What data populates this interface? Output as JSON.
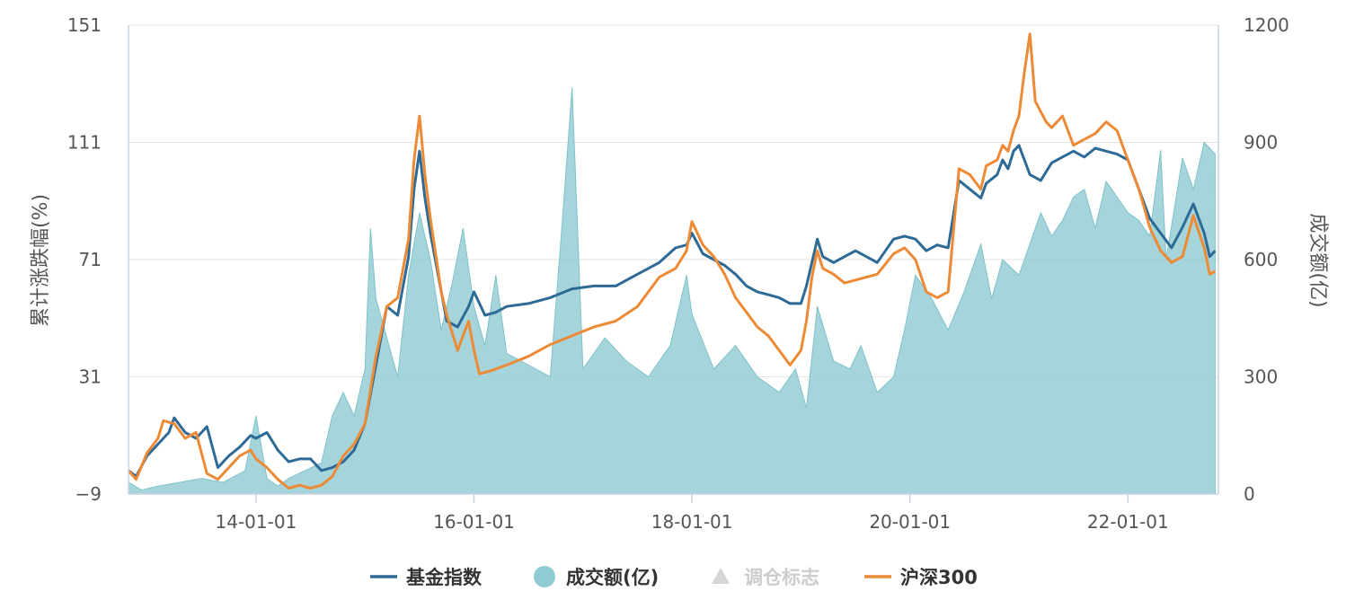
{
  "chart_data": {
    "type": "line",
    "x_ticks": [
      "14-01-01",
      "16-01-01",
      "18-01-01",
      "20-01-01",
      "22-01-01"
    ],
    "y_left": {
      "label": "累计涨跌幅(%)",
      "ticks": [
        -9,
        31,
        71,
        111,
        151
      ],
      "range": [
        -9,
        151
      ]
    },
    "y_right": {
      "label": "成交额(亿)",
      "ticks": [
        0,
        300,
        600,
        900,
        1200
      ],
      "range": [
        0,
        1200
      ]
    },
    "grid": true,
    "legend_position": "bottom",
    "colors": {
      "fund_index": "#2e6a96",
      "turnover": "#8fcbd2",
      "rebalance": "#d6d6d6",
      "csi300": "#ec8a35",
      "grid": "#e3e3e3",
      "axis": "#c9d3dd"
    },
    "legend": [
      {
        "name": "基金指数",
        "marker": "line",
        "color": "#2e6a96",
        "enabled": true
      },
      {
        "name": "成交额(亿)",
        "marker": "circle",
        "color": "#8fcbd2",
        "enabled": true
      },
      {
        "name": "调仓标志",
        "marker": "triangle",
        "color": "#cccccc",
        "enabled": false
      },
      {
        "name": "沪深300",
        "marker": "line",
        "color": "#ec8a35",
        "enabled": true
      }
    ],
    "series": [
      {
        "name": "基金指数",
        "axis": "left",
        "points": [
          [
            2012.83,
            -1
          ],
          [
            2012.9,
            -3
          ],
          [
            2013.0,
            4
          ],
          [
            2013.1,
            8
          ],
          [
            2013.2,
            12
          ],
          [
            2013.25,
            17
          ],
          [
            2013.35,
            12
          ],
          [
            2013.45,
            10
          ],
          [
            2013.55,
            14
          ],
          [
            2013.65,
            0
          ],
          [
            2013.75,
            4
          ],
          [
            2013.85,
            7
          ],
          [
            2013.95,
            11
          ],
          [
            2014.0,
            10
          ],
          [
            2014.1,
            12
          ],
          [
            2014.2,
            6
          ],
          [
            2014.3,
            2
          ],
          [
            2014.4,
            3
          ],
          [
            2014.5,
            3
          ],
          [
            2014.6,
            -1
          ],
          [
            2014.7,
            0
          ],
          [
            2014.8,
            2
          ],
          [
            2014.9,
            6
          ],
          [
            2015.0,
            15
          ],
          [
            2015.1,
            35
          ],
          [
            2015.2,
            55
          ],
          [
            2015.3,
            52
          ],
          [
            2015.4,
            72
          ],
          [
            2015.45,
            95
          ],
          [
            2015.5,
            108
          ],
          [
            2015.55,
            92
          ],
          [
            2015.6,
            80
          ],
          [
            2015.7,
            60
          ],
          [
            2015.75,
            50
          ],
          [
            2015.85,
            48
          ],
          [
            2015.95,
            55
          ],
          [
            2016.0,
            60
          ],
          [
            2016.05,
            56
          ],
          [
            2016.1,
            52
          ],
          [
            2016.2,
            53
          ],
          [
            2016.3,
            55
          ],
          [
            2016.5,
            56
          ],
          [
            2016.7,
            58
          ],
          [
            2016.9,
            61
          ],
          [
            2017.1,
            62
          ],
          [
            2017.3,
            62
          ],
          [
            2017.5,
            66
          ],
          [
            2017.7,
            70
          ],
          [
            2017.85,
            75
          ],
          [
            2017.95,
            76
          ],
          [
            2018.0,
            80
          ],
          [
            2018.1,
            73
          ],
          [
            2018.2,
            71
          ],
          [
            2018.3,
            69
          ],
          [
            2018.4,
            66
          ],
          [
            2018.5,
            62
          ],
          [
            2018.6,
            60
          ],
          [
            2018.7,
            59
          ],
          [
            2018.8,
            58
          ],
          [
            2018.9,
            56
          ],
          [
            2019.0,
            56
          ],
          [
            2019.05,
            62
          ],
          [
            2019.1,
            70
          ],
          [
            2019.15,
            78
          ],
          [
            2019.2,
            72
          ],
          [
            2019.3,
            70
          ],
          [
            2019.4,
            72
          ],
          [
            2019.5,
            74
          ],
          [
            2019.6,
            72
          ],
          [
            2019.7,
            70
          ],
          [
            2019.85,
            78
          ],
          [
            2019.95,
            79
          ],
          [
            2020.05,
            78
          ],
          [
            2020.15,
            74
          ],
          [
            2020.25,
            76
          ],
          [
            2020.35,
            75
          ],
          [
            2020.45,
            98
          ],
          [
            2020.55,
            95
          ],
          [
            2020.65,
            92
          ],
          [
            2020.7,
            97
          ],
          [
            2020.8,
            100
          ],
          [
            2020.85,
            105
          ],
          [
            2020.9,
            102
          ],
          [
            2020.95,
            108
          ],
          [
            2021.0,
            110
          ],
          [
            2021.05,
            105
          ],
          [
            2021.1,
            100
          ],
          [
            2021.2,
            98
          ],
          [
            2021.3,
            104
          ],
          [
            2021.4,
            106
          ],
          [
            2021.5,
            108
          ],
          [
            2021.6,
            106
          ],
          [
            2021.7,
            109
          ],
          [
            2021.8,
            108
          ],
          [
            2021.9,
            107
          ],
          [
            2022.0,
            105
          ],
          [
            2022.1,
            95
          ],
          [
            2022.2,
            85
          ],
          [
            2022.3,
            80
          ],
          [
            2022.4,
            75
          ],
          [
            2022.5,
            82
          ],
          [
            2022.6,
            90
          ],
          [
            2022.7,
            80
          ],
          [
            2022.75,
            72
          ],
          [
            2022.8,
            74
          ]
        ]
      },
      {
        "name": "沪深300",
        "axis": "left",
        "points": [
          [
            2012.83,
            -1
          ],
          [
            2012.9,
            -4
          ],
          [
            2013.0,
            5
          ],
          [
            2013.1,
            10
          ],
          [
            2013.15,
            16
          ],
          [
            2013.25,
            15
          ],
          [
            2013.35,
            10
          ],
          [
            2013.45,
            12
          ],
          [
            2013.55,
            -2
          ],
          [
            2013.65,
            -4
          ],
          [
            2013.75,
            0
          ],
          [
            2013.85,
            4
          ],
          [
            2013.95,
            6
          ],
          [
            2014.0,
            3
          ],
          [
            2014.1,
            0
          ],
          [
            2014.2,
            -4
          ],
          [
            2014.3,
            -7
          ],
          [
            2014.4,
            -6
          ],
          [
            2014.5,
            -7
          ],
          [
            2014.6,
            -6
          ],
          [
            2014.7,
            -3
          ],
          [
            2014.8,
            4
          ],
          [
            2014.9,
            8
          ],
          [
            2015.0,
            15
          ],
          [
            2015.1,
            38
          ],
          [
            2015.2,
            55
          ],
          [
            2015.3,
            58
          ],
          [
            2015.4,
            78
          ],
          [
            2015.45,
            105
          ],
          [
            2015.5,
            120
          ],
          [
            2015.55,
            100
          ],
          [
            2015.6,
            85
          ],
          [
            2015.7,
            60
          ],
          [
            2015.75,
            52
          ],
          [
            2015.85,
            40
          ],
          [
            2015.95,
            50
          ],
          [
            2016.0,
            40
          ],
          [
            2016.05,
            32
          ],
          [
            2016.15,
            33
          ],
          [
            2016.3,
            35
          ],
          [
            2016.5,
            38
          ],
          [
            2016.7,
            42
          ],
          [
            2016.9,
            45
          ],
          [
            2017.1,
            48
          ],
          [
            2017.3,
            50
          ],
          [
            2017.5,
            55
          ],
          [
            2017.7,
            65
          ],
          [
            2017.85,
            68
          ],
          [
            2017.95,
            74
          ],
          [
            2018.0,
            84
          ],
          [
            2018.1,
            76
          ],
          [
            2018.2,
            72
          ],
          [
            2018.3,
            66
          ],
          [
            2018.4,
            58
          ],
          [
            2018.5,
            53
          ],
          [
            2018.6,
            48
          ],
          [
            2018.7,
            45
          ],
          [
            2018.8,
            40
          ],
          [
            2018.9,
            35
          ],
          [
            2019.0,
            40
          ],
          [
            2019.05,
            50
          ],
          [
            2019.1,
            65
          ],
          [
            2019.15,
            74
          ],
          [
            2019.2,
            68
          ],
          [
            2019.3,
            66
          ],
          [
            2019.4,
            63
          ],
          [
            2019.5,
            64
          ],
          [
            2019.6,
            65
          ],
          [
            2019.7,
            66
          ],
          [
            2019.85,
            73
          ],
          [
            2019.95,
            75
          ],
          [
            2020.05,
            71
          ],
          [
            2020.15,
            60
          ],
          [
            2020.25,
            58
          ],
          [
            2020.35,
            60
          ],
          [
            2020.45,
            102
          ],
          [
            2020.55,
            100
          ],
          [
            2020.65,
            95
          ],
          [
            2020.7,
            103
          ],
          [
            2020.8,
            105
          ],
          [
            2020.85,
            110
          ],
          [
            2020.9,
            108
          ],
          [
            2020.95,
            115
          ],
          [
            2021.0,
            120
          ],
          [
            2021.05,
            135
          ],
          [
            2021.1,
            148
          ],
          [
            2021.15,
            125
          ],
          [
            2021.25,
            118
          ],
          [
            2021.3,
            116
          ],
          [
            2021.4,
            120
          ],
          [
            2021.5,
            110
          ],
          [
            2021.6,
            112
          ],
          [
            2021.7,
            114
          ],
          [
            2021.8,
            118
          ],
          [
            2021.9,
            115
          ],
          [
            2022.0,
            105
          ],
          [
            2022.1,
            95
          ],
          [
            2022.2,
            82
          ],
          [
            2022.3,
            74
          ],
          [
            2022.4,
            70
          ],
          [
            2022.5,
            72
          ],
          [
            2022.6,
            86
          ],
          [
            2022.7,
            75
          ],
          [
            2022.75,
            66
          ],
          [
            2022.8,
            67
          ]
        ]
      },
      {
        "name": "成交额(亿)",
        "axis": "right",
        "type": "area",
        "points": [
          [
            2012.83,
            30
          ],
          [
            2012.95,
            10
          ],
          [
            2013.1,
            20
          ],
          [
            2013.3,
            30
          ],
          [
            2013.5,
            40
          ],
          [
            2013.7,
            30
          ],
          [
            2013.9,
            60
          ],
          [
            2014.0,
            200
          ],
          [
            2014.1,
            40
          ],
          [
            2014.2,
            20
          ],
          [
            2014.3,
            40
          ],
          [
            2014.45,
            60
          ],
          [
            2014.6,
            80
          ],
          [
            2014.7,
            200
          ],
          [
            2014.8,
            260
          ],
          [
            2014.9,
            200
          ],
          [
            2015.0,
            320
          ],
          [
            2015.05,
            680
          ],
          [
            2015.1,
            500
          ],
          [
            2015.2,
            400
          ],
          [
            2015.3,
            300
          ],
          [
            2015.4,
            560
          ],
          [
            2015.5,
            720
          ],
          [
            2015.6,
            600
          ],
          [
            2015.7,
            420
          ],
          [
            2015.8,
            540
          ],
          [
            2015.9,
            680
          ],
          [
            2016.0,
            480
          ],
          [
            2016.1,
            380
          ],
          [
            2016.2,
            560
          ],
          [
            2016.3,
            360
          ],
          [
            2016.5,
            330
          ],
          [
            2016.7,
            300
          ],
          [
            2016.8,
            660
          ],
          [
            2016.9,
            1040
          ],
          [
            2017.0,
            320
          ],
          [
            2017.2,
            400
          ],
          [
            2017.4,
            340
          ],
          [
            2017.6,
            300
          ],
          [
            2017.8,
            380
          ],
          [
            2017.95,
            560
          ],
          [
            2018.0,
            460
          ],
          [
            2018.2,
            320
          ],
          [
            2018.4,
            380
          ],
          [
            2018.6,
            300
          ],
          [
            2018.8,
            260
          ],
          [
            2018.95,
            320
          ],
          [
            2019.05,
            220
          ],
          [
            2019.15,
            480
          ],
          [
            2019.3,
            340
          ],
          [
            2019.45,
            320
          ],
          [
            2019.55,
            380
          ],
          [
            2019.7,
            260
          ],
          [
            2019.85,
            300
          ],
          [
            2019.95,
            420
          ],
          [
            2020.05,
            560
          ],
          [
            2020.2,
            500
          ],
          [
            2020.35,
            420
          ],
          [
            2020.5,
            520
          ],
          [
            2020.65,
            640
          ],
          [
            2020.75,
            500
          ],
          [
            2020.85,
            600
          ],
          [
            2021.0,
            560
          ],
          [
            2021.1,
            640
          ],
          [
            2021.2,
            720
          ],
          [
            2021.3,
            660
          ],
          [
            2021.4,
            700
          ],
          [
            2021.5,
            760
          ],
          [
            2021.6,
            780
          ],
          [
            2021.7,
            680
          ],
          [
            2021.8,
            800
          ],
          [
            2021.9,
            760
          ],
          [
            2022.0,
            720
          ],
          [
            2022.1,
            700
          ],
          [
            2022.2,
            660
          ],
          [
            2022.3,
            880
          ],
          [
            2022.35,
            600
          ],
          [
            2022.5,
            860
          ],
          [
            2022.6,
            780
          ],
          [
            2022.7,
            900
          ],
          [
            2022.8,
            870
          ]
        ]
      }
    ]
  }
}
